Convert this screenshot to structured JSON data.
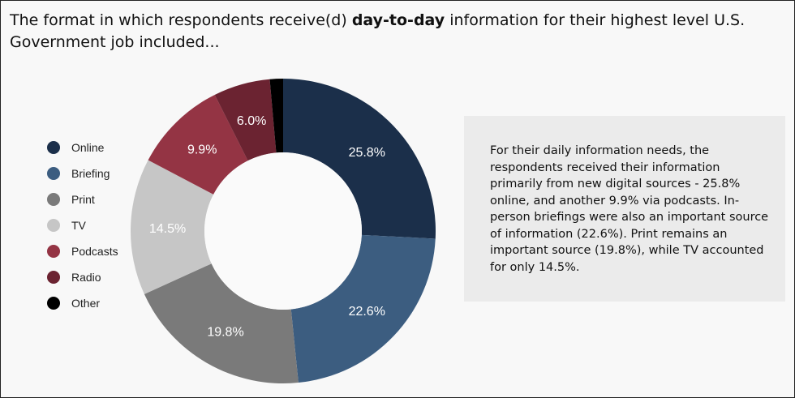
{
  "title": {
    "prefix": "The format in which respondents receive(d) ",
    "bold": "day-to-day",
    "suffix": " information for their highest level U.S. Government job included..."
  },
  "summary": "For their daily information needs, the respondents received their information primarily from new digital sources - 25.8% online, and another 9.9% via podcasts. In-person briefings were also an important source of information (22.6%). Print remains an important source (19.8%), while TV accounted for only 14.5%.",
  "chart_data": {
    "type": "pie",
    "subtype": "donut",
    "categories": [
      "Online",
      "Briefing",
      "Print",
      "TV",
      "Podcasts",
      "Radio",
      "Other"
    ],
    "values": [
      25.8,
      22.6,
      19.8,
      14.5,
      9.9,
      6.0,
      1.4
    ],
    "labels": [
      "25.8%",
      "22.6%",
      "19.8%",
      "14.5%",
      "9.9%",
      "6.0%",
      ""
    ],
    "colors": [
      "#1b2f4a",
      "#3c5d80",
      "#7a7a7a",
      "#c6c6c6",
      "#943444",
      "#6b2331",
      "#000000"
    ],
    "label_colors": [
      "#ffffff",
      "#ffffff",
      "#ffffff",
      "#ffffff",
      "#ffffff",
      "#ffffff",
      "#ffffff"
    ],
    "legend_position": "left"
  }
}
